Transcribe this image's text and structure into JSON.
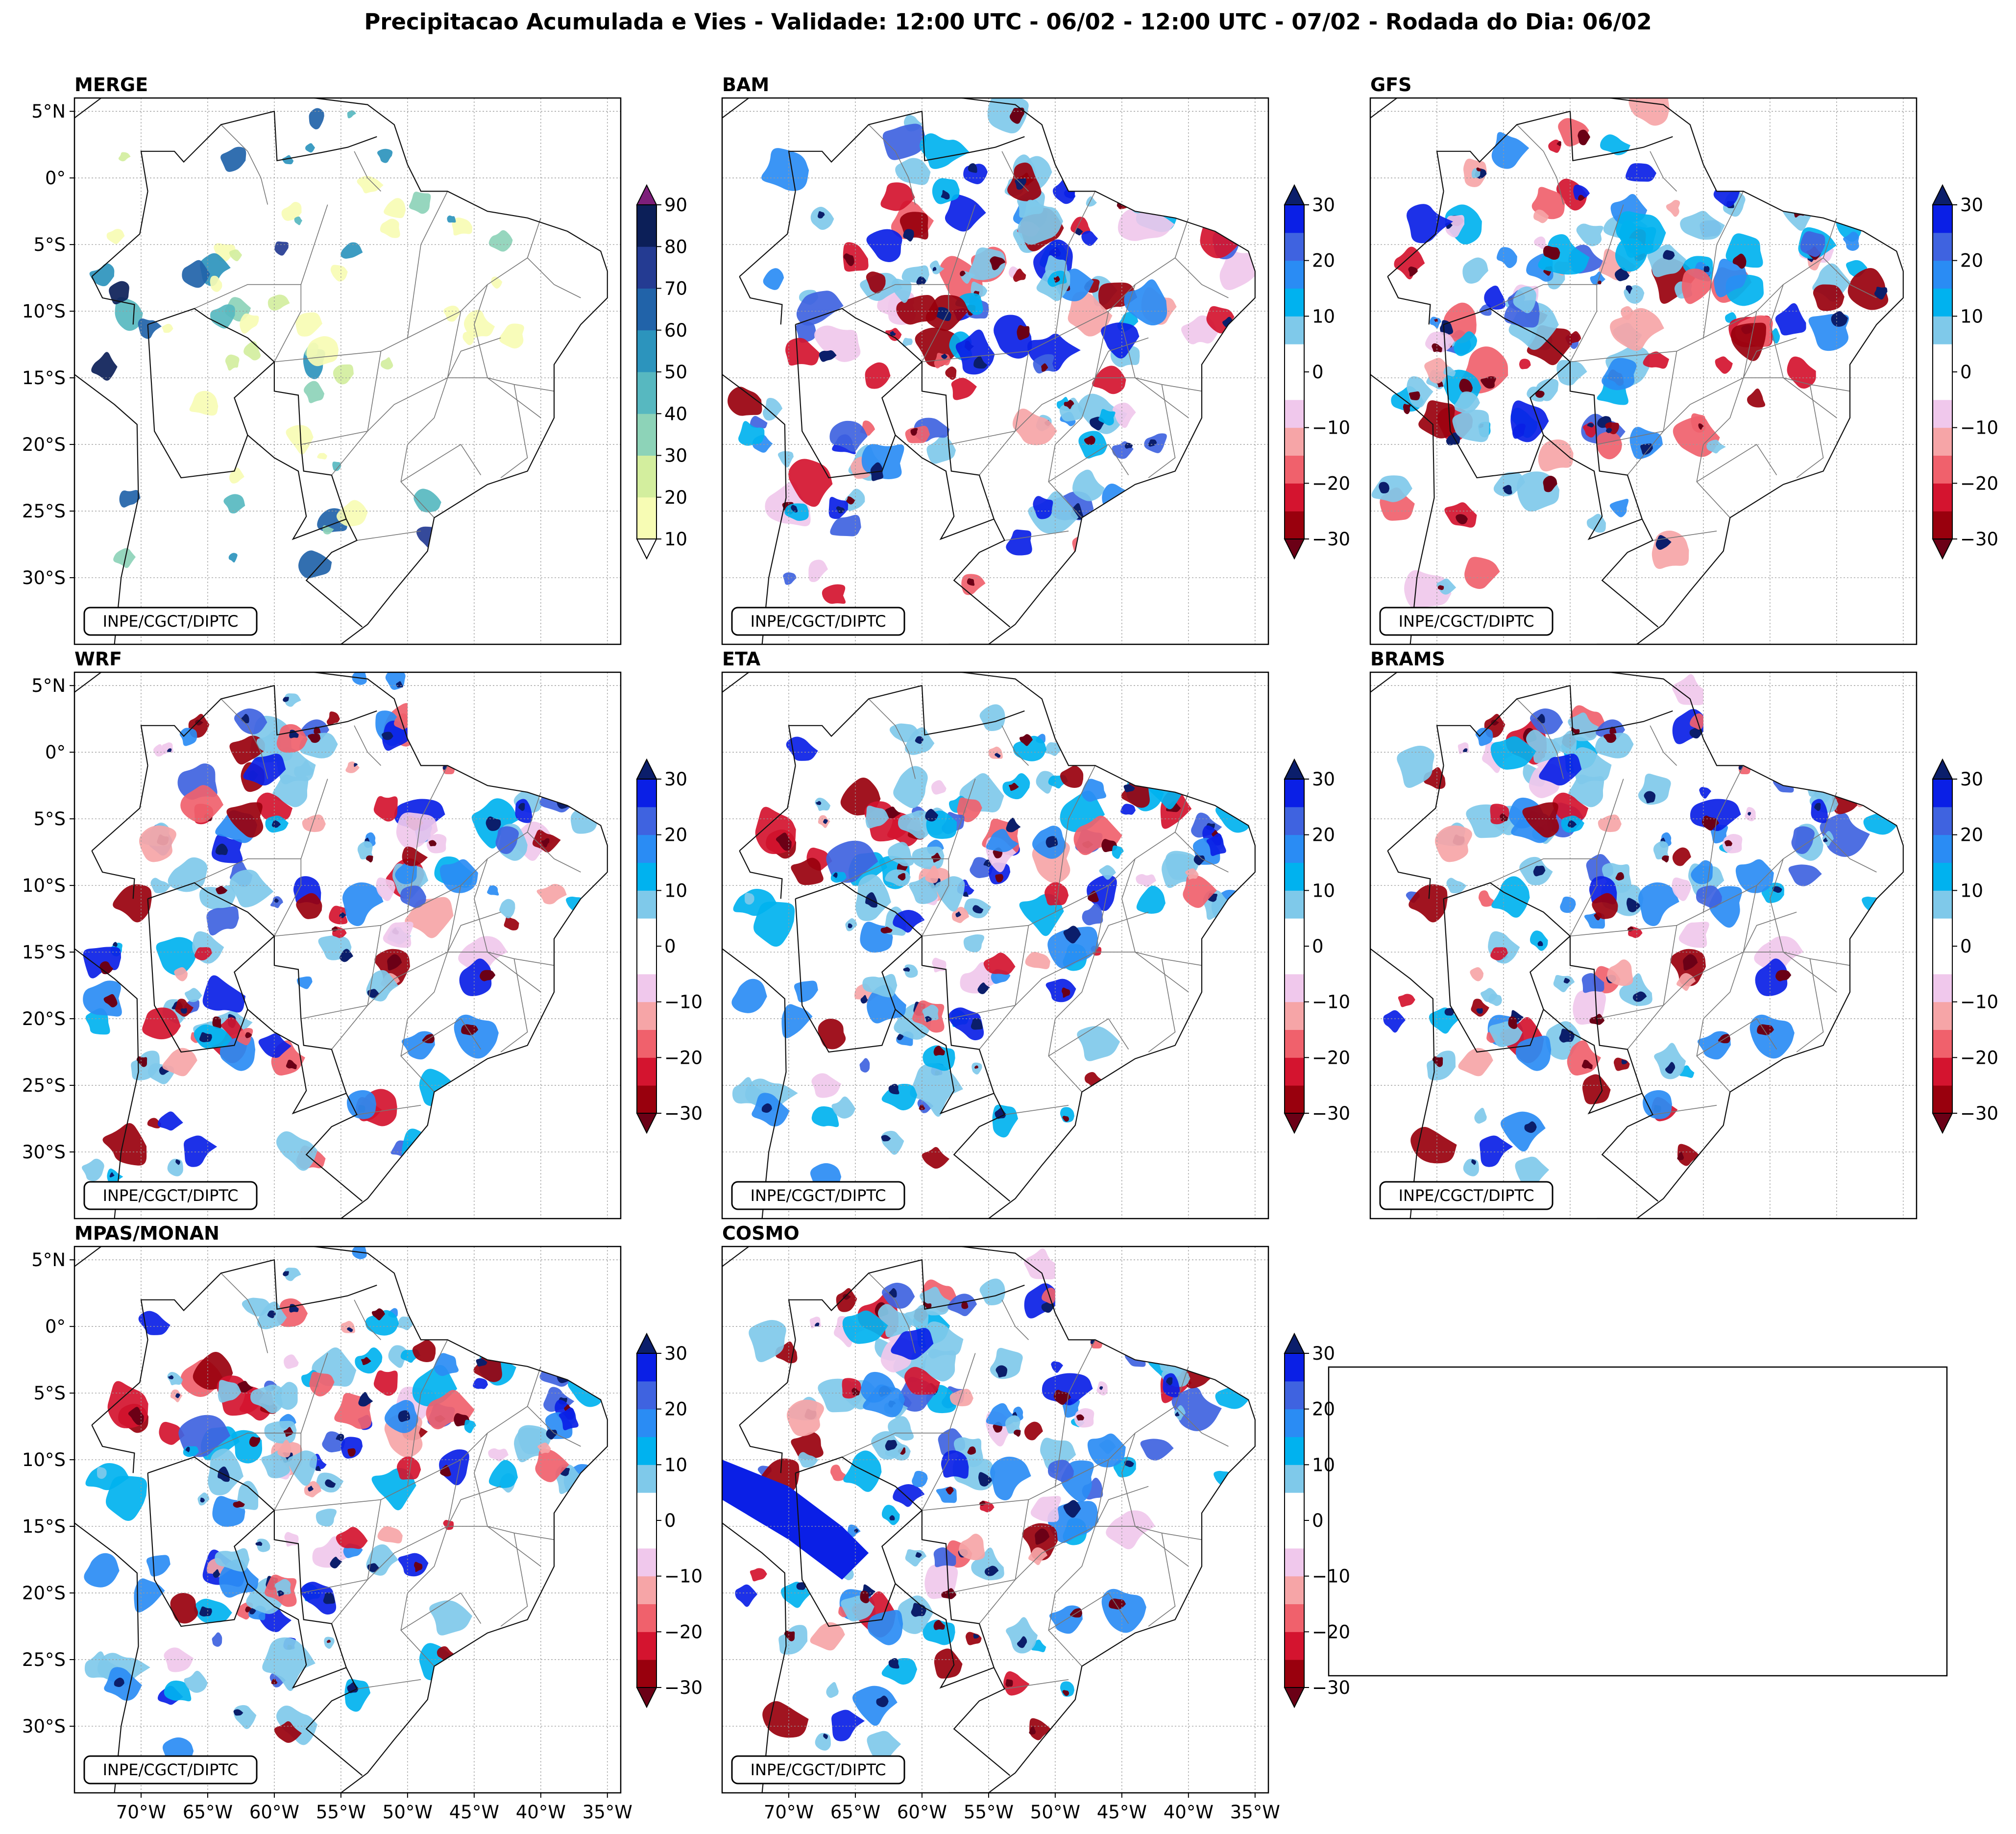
{
  "figure_title": "Precipitacao Acumulada e Vies - Validade: 12:00 UTC - 06/02 - 12:00 UTC - 07/02 - Rodada do Dia: 06/02",
  "credit": "INPE/CGCT/DIPTC",
  "lat_ticks": [
    "5°N",
    "0°",
    "5°S",
    "10°S",
    "15°S",
    "20°S",
    "25°S",
    "30°S"
  ],
  "lon_ticks": [
    "70°W",
    "65°W",
    "60°W",
    "55°W",
    "50°W",
    "45°W",
    "40°W",
    "35°W"
  ],
  "colors": {
    "precip": [
      "#f7fcb4",
      "#d3ee9e",
      "#8dd3b8",
      "#57b8c0",
      "#2c94bd",
      "#2163a9",
      "#243b92",
      "#0c1f58"
    ],
    "precip_over": "#7d1f7a",
    "bias": [
      "#99000d",
      "#d4142f",
      "#f0616c",
      "#f6a5a7",
      "#f0c8ec",
      "#ffffff",
      "#ffffff",
      "#7fc9ea",
      "#00b2ef",
      "#2a8cf4",
      "#3f63e0",
      "#0a1fe6"
    ],
    "bias_under": "#6b0016",
    "bias_over": "#0b1e6b"
  },
  "chart_data": [
    {
      "type": "filled-contour-map",
      "title": "MERGE",
      "variable": "precipitation (mm)",
      "colorbar_ticks": [
        "90",
        "80",
        "70",
        "60",
        "50",
        "40",
        "30",
        "20",
        "10"
      ],
      "colorbar_range": [
        10,
        90
      ],
      "extend": "both"
    },
    {
      "type": "filled-contour-map",
      "title": "BAM",
      "variable": "bias (mm)",
      "colorbar_ticks": [
        "30",
        "20",
        "10",
        "0",
        "−10",
        "−20",
        "−30"
      ],
      "colorbar_range": [
        -30,
        30
      ],
      "extend": "both"
    },
    {
      "type": "filled-contour-map",
      "title": "GFS",
      "variable": "bias (mm)",
      "colorbar_ticks": [
        "30",
        "20",
        "10",
        "0",
        "−10",
        "−20",
        "−30"
      ],
      "colorbar_range": [
        -30,
        30
      ],
      "extend": "both"
    },
    {
      "type": "filled-contour-map",
      "title": "WRF",
      "variable": "bias (mm)",
      "colorbar_ticks": [
        "30",
        "20",
        "10",
        "0",
        "−10",
        "−20",
        "−30"
      ],
      "colorbar_range": [
        -30,
        30
      ],
      "extend": "both"
    },
    {
      "type": "filled-contour-map",
      "title": "ETA",
      "variable": "bias (mm)",
      "colorbar_ticks": [
        "30",
        "20",
        "10",
        "0",
        "−10",
        "−20",
        "−30"
      ],
      "colorbar_range": [
        -30,
        30
      ],
      "extend": "both"
    },
    {
      "type": "filled-contour-map",
      "title": "BRAMS",
      "variable": "bias (mm)",
      "colorbar_ticks": [
        "30",
        "20",
        "10",
        "0",
        "−10",
        "−20",
        "−30"
      ],
      "colorbar_range": [
        -30,
        30
      ],
      "extend": "both"
    },
    {
      "type": "filled-contour-map",
      "title": "MPAS/MONAN",
      "variable": "bias (mm)",
      "colorbar_ticks": [
        "30",
        "20",
        "10",
        "0",
        "−10",
        "−20",
        "−30"
      ],
      "colorbar_range": [
        -30,
        30
      ],
      "extend": "both"
    },
    {
      "type": "filled-contour-map",
      "title": "COSMO",
      "variable": "bias (mm)",
      "colorbar_ticks": [
        "30",
        "20",
        "10",
        "0",
        "−10",
        "−20",
        "−30"
      ],
      "colorbar_range": [
        -30,
        30
      ],
      "extend": "both"
    }
  ]
}
